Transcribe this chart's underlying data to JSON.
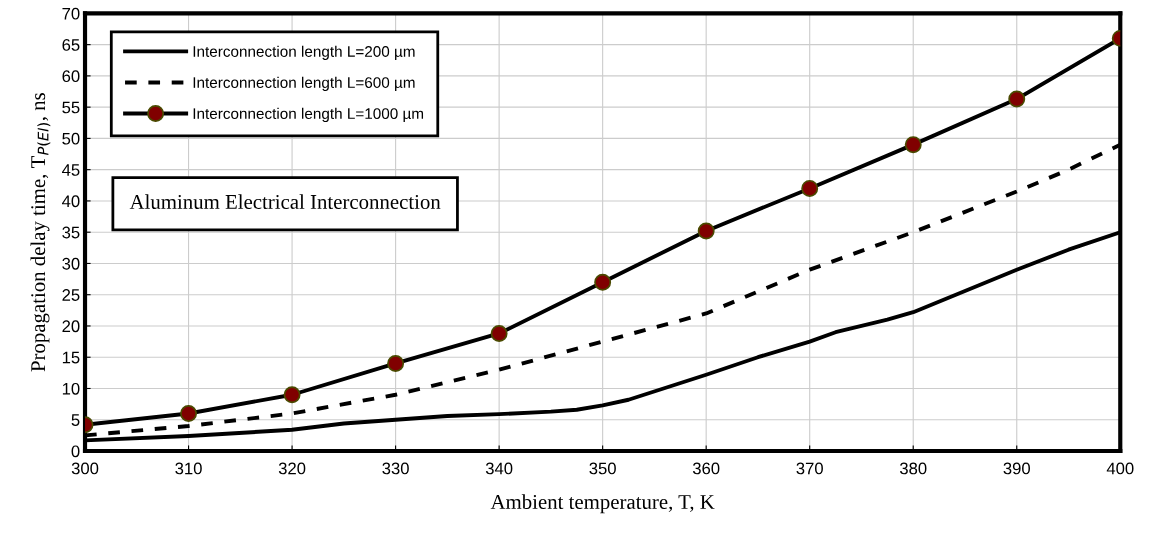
{
  "chart_data": {
    "type": "line",
    "xlabel": "Ambient temperature, T, K",
    "ylabel": "Propagation delay time, T$_{P(EI)}$, ns",
    "xlim": [
      300,
      400
    ],
    "xticks": [
      300,
      310,
      320,
      330,
      340,
      350,
      360,
      370,
      380,
      390,
      400
    ],
    "ylim": [
      0,
      70
    ],
    "yticks": [
      0,
      5,
      10,
      15,
      20,
      25,
      30,
      35,
      40,
      45,
      50,
      55,
      60,
      65,
      70
    ],
    "grid": true,
    "legend": "top left",
    "annotations": [
      "Aluminum Electrical Interconnection"
    ],
    "series": [
      {
        "name": "Interconnection length L=200 µm",
        "color": "#000000",
        "line_style": "solid",
        "marker": "none",
        "x": [
          300,
          310,
          320,
          325,
          330,
          335,
          340,
          345,
          347.5,
          350,
          352.5,
          360,
          365,
          370,
          372.5,
          377.5,
          380,
          390,
          395,
          400
        ],
        "values": [
          1.7,
          2.4,
          3.4,
          4.4,
          5,
          5.6,
          5.9,
          6.3,
          6.6,
          7.3,
          8.2,
          12.2,
          15,
          17.5,
          19,
          21,
          22.2,
          29,
          32.2,
          35
        ]
      },
      {
        "name": "Interconnection length L=600 µm",
        "color": "#000000",
        "line_style": "dashed",
        "marker": "none",
        "x": [
          300,
          310,
          320,
          330,
          340,
          350,
          360,
          370,
          380,
          390,
          395,
          400
        ],
        "values": [
          2.5,
          4,
          6,
          9,
          13,
          17.5,
          22,
          29,
          35,
          41.5,
          45,
          49
        ]
      },
      {
        "name": "Interconnection length L=1000 µm",
        "color": "#000000",
        "line_style": "solid",
        "marker": "circle",
        "x": [
          300,
          310,
          320,
          330,
          340,
          350,
          360,
          370,
          380,
          390,
          400
        ],
        "values": [
          4.2,
          6,
          9,
          14,
          18.8,
          27,
          35.2,
          42,
          49,
          56.3,
          66
        ]
      }
    ]
  }
}
